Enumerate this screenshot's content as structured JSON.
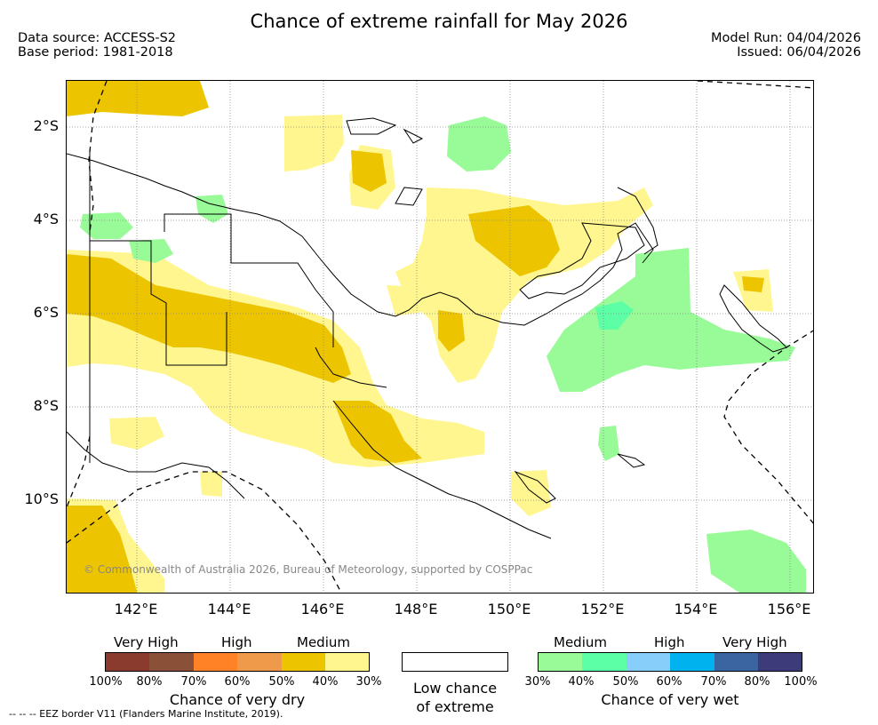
{
  "title": "Chance of extreme rainfall for May 2026",
  "data_source": "Data source: ACCESS-S2",
  "base_period": "Base period: 1981-2018",
  "model_run": "Model Run: 04/04/2026",
  "issued": "Issued: 06/04/2026",
  "lat_labels": [
    "2°S",
    "4°S",
    "6°S",
    "8°S",
    "10°S"
  ],
  "lon_labels": [
    "142°E",
    "144°E",
    "146°E",
    "148°E",
    "150°E",
    "152°E",
    "154°E",
    "156°E"
  ],
  "copyright": "© Commonwealth of Australia 2026, Bureau of Meteorology, supported by COSPPac",
  "dry_legend": {
    "labels": [
      "Very High",
      "High",
      "Medium"
    ],
    "colors": [
      "#8B3A2E",
      "#8B5038",
      "#FF8226",
      "#EE9A4A",
      "#EDC400",
      "#FFF68F"
    ],
    "ticks": [
      "100%",
      "80%",
      "70%",
      "60%",
      "50%",
      "40%",
      "30%"
    ],
    "caption": "Chance of very dry"
  },
  "low_legend": {
    "caption_line1": "Low chance",
    "caption_line2": "of extreme",
    "color": "#ffffff"
  },
  "wet_legend": {
    "labels": [
      "Medium",
      "High",
      "Very High"
    ],
    "colors": [
      "#98FB98",
      "#5CFFA6",
      "#87CEFA",
      "#00B2EE",
      "#3A65A1",
      "#3D3B7A"
    ],
    "ticks": [
      "30%",
      "40%",
      "50%",
      "60%",
      "70%",
      "80%",
      "100%"
    ],
    "caption": "Chance of very wet"
  },
  "eez_note": "--  --  -- EEZ border V11 (Flanders Marine Institute, 2019).",
  "map_colors": {
    "dry_medium": "#EDC400",
    "dry_low": "#FFF68F",
    "wet_medium": "#98FB98",
    "wet_high": "#5CFFA6",
    "coast": "#000000",
    "grid": "#888888"
  }
}
